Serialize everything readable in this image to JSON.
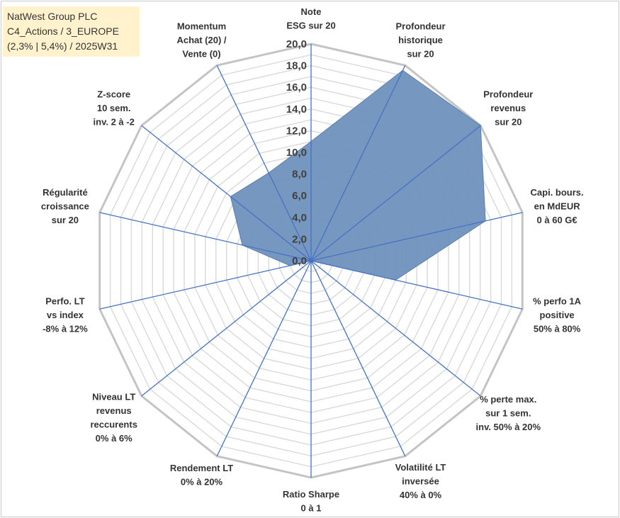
{
  "title_box": {
    "lines": [
      "NatWest Group PLC",
      "C4_Actions / 3_EUROPE",
      "(2,3% | 5,4%) / 2025W31"
    ]
  },
  "colors": {
    "fill": "#6f92bd",
    "line": "#4472c4",
    "grid": "#c8c8c8",
    "title_bg": "#fff2cc"
  },
  "chart_data": {
    "type": "radar",
    "title": "",
    "rlim": [
      0,
      20
    ],
    "grid": true,
    "tick_labels": [
      "0,0",
      "2,0",
      "4,0",
      "6,0",
      "8,0",
      "10,0",
      "12,0",
      "14,0",
      "16,0",
      "18,0",
      "20,0"
    ],
    "axes": [
      [
        "Note",
        "ESG sur 20"
      ],
      [
        "Profondeur",
        "historique",
        "sur 20"
      ],
      [
        "Profondeur",
        "revenus",
        "sur 20"
      ],
      [
        "Capi. bours.",
        "en MdEUR",
        "0 à 60 G€"
      ],
      [
        "% perfo 1A",
        "positive",
        "50% à 80%"
      ],
      [
        "% perte max.",
        "sur 1 sem.",
        "inv. 50% à 20%"
      ],
      [
        "Volatilité LT",
        "inversée",
        "40% à 0%"
      ],
      [
        "Ratio Sharpe",
        "0 à 1"
      ],
      [
        "Rendement LT",
        "0% à 20%"
      ],
      [
        "Niveau LT",
        "revenus",
        "reccurents",
        "0% à 6%"
      ],
      [
        "Perfo. LT",
        "vs index",
        "-8% à 12%"
      ],
      [
        "Régularité",
        "croissance",
        "sur 20"
      ],
      [
        "Z-score",
        "10 sem.",
        "inv. 2 à -2"
      ],
      [
        "Momentum",
        "Achat (20) /",
        "Vente (0)"
      ]
    ],
    "series": [
      {
        "values": [
          11.0,
          19.5,
          20.0,
          16.5,
          8.0,
          0.0,
          0.0,
          0.0,
          0.0,
          0.0,
          2.0,
          6.5,
          9.5,
          9.0
        ]
      }
    ]
  }
}
